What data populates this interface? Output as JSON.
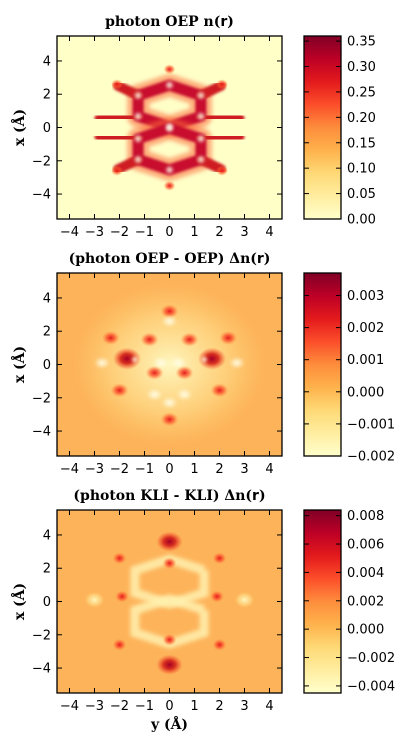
{
  "chart_data": [
    {
      "type": "heatmap",
      "title": "photon OEP n(r)",
      "title_parts": {
        "pre": "photon OEP n(",
        "vec": "r",
        "post": ")"
      },
      "ylabel": "x (Å)",
      "xlabel": "",
      "x_range": [
        -4.5,
        4.5
      ],
      "y_range": [
        -5.5,
        5.5
      ],
      "x_ticks": [
        -4,
        -3,
        -2,
        -1,
        0,
        1,
        2,
        3,
        4
      ],
      "y_ticks": [
        4,
        2,
        0,
        -2,
        -4
      ],
      "colorbar_range": [
        0.0,
        0.36
      ],
      "colorbar_ticks": [
        "0.35",
        "0.30",
        "0.25",
        "0.20",
        "0.15",
        "0.10",
        "0.05",
        "0.00"
      ],
      "colorbar_tick_values": [
        0.35,
        0.3,
        0.25,
        0.2,
        0.15,
        0.1,
        0.05,
        0.0
      ],
      "colormap": [
        "#ffffcc",
        "#ffeda0",
        "#fed976",
        "#feb24c",
        "#fd8d3c",
        "#fc4e2a",
        "#e31a1c",
        "#bd0026",
        "#800026"
      ]
    },
    {
      "type": "heatmap",
      "title": "(photon OEP - OEP) Δn(r)",
      "title_parts": {
        "pre": "(photon OEP - OEP) Δn(",
        "vec": "r",
        "post": ")"
      },
      "ylabel": "x (Å)",
      "xlabel": "",
      "x_range": [
        -4.5,
        4.5
      ],
      "y_range": [
        -5.5,
        5.5
      ],
      "x_ticks": [
        -4,
        -3,
        -2,
        -1,
        0,
        1,
        2,
        3,
        4
      ],
      "y_ticks": [
        4,
        2,
        0,
        -2,
        -4
      ],
      "colorbar_range": [
        -0.002,
        0.0037
      ],
      "colorbar_ticks": [
        "0.003",
        "0.002",
        "0.001",
        "0.000",
        "−0.001",
        "−0.002"
      ],
      "colorbar_tick_values": [
        0.003,
        0.002,
        0.001,
        0.0,
        -0.001,
        -0.002
      ],
      "colormap": [
        "#ffffcc",
        "#ffeda0",
        "#fed976",
        "#feb24c",
        "#fd8d3c",
        "#fc4e2a",
        "#e31a1c",
        "#bd0026",
        "#800026"
      ]
    },
    {
      "type": "heatmap",
      "title": "(photon KLI - KLI) Δn(r)",
      "title_parts": {
        "pre": "(photon KLI - KLI) Δn(",
        "vec": "r",
        "post": ")"
      },
      "ylabel": "x (Å)",
      "xlabel": "y (Å)",
      "x_range": [
        -4.5,
        4.5
      ],
      "y_range": [
        -5.5,
        5.5
      ],
      "x_ticks": [
        -4,
        -3,
        -2,
        -1,
        0,
        1,
        2,
        3,
        4
      ],
      "y_ticks": [
        4,
        2,
        0,
        -2,
        -4
      ],
      "colorbar_range": [
        -0.0045,
        0.0084
      ],
      "colorbar_ticks": [
        "0.008",
        "0.006",
        "0.004",
        "0.002",
        "0.000",
        "−0.002",
        "−0.004"
      ],
      "colorbar_tick_values": [
        0.008,
        0.006,
        0.004,
        0.002,
        0.0,
        -0.002,
        -0.004
      ],
      "colormap": [
        "#ffffcc",
        "#ffeda0",
        "#fed976",
        "#feb24c",
        "#fd8d3c",
        "#fc4e2a",
        "#e31a1c",
        "#bd0026",
        "#800026"
      ]
    }
  ]
}
